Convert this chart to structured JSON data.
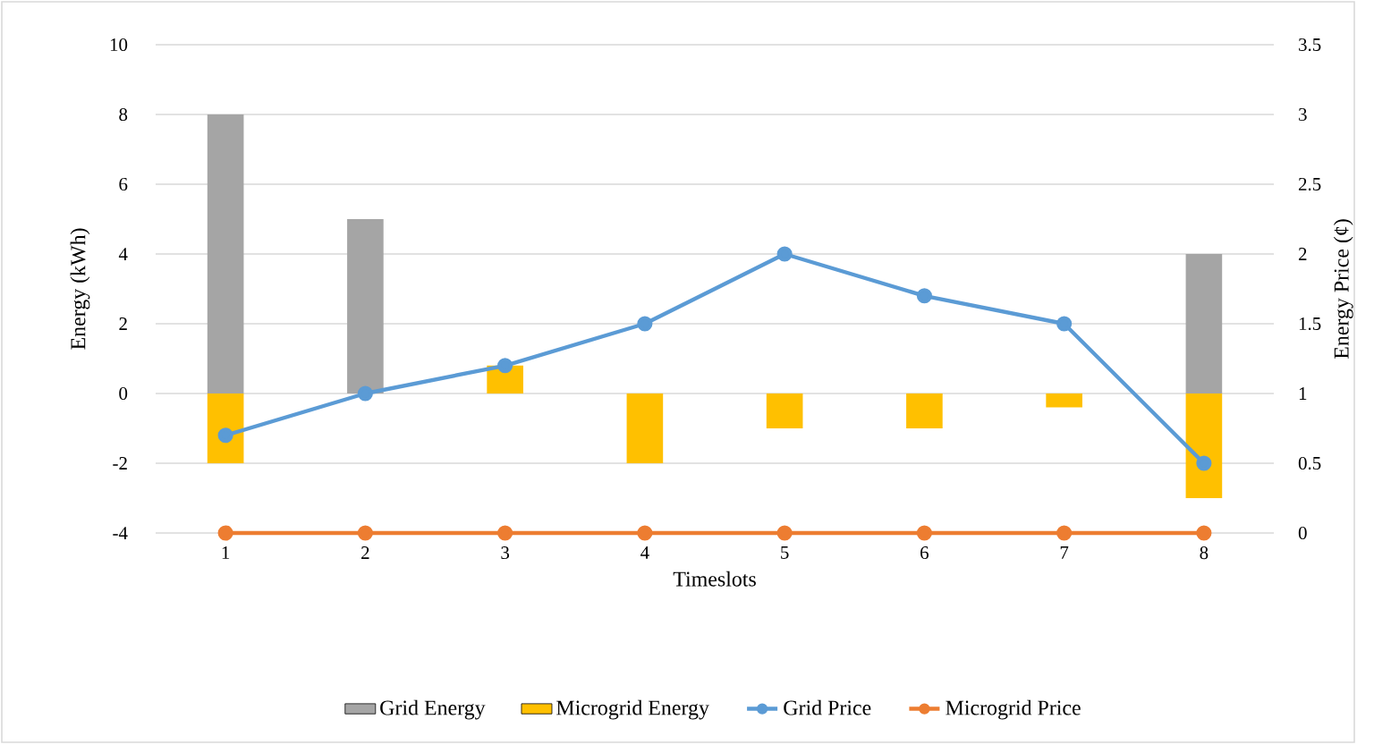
{
  "chart_data": {
    "type": "bar",
    "xlabel": "Timeslots",
    "ylabel": "Energy (kWh)",
    "y2label": "Energy Price (¢)",
    "categories": [
      "1",
      "2",
      "3",
      "4",
      "5",
      "6",
      "7",
      "8"
    ],
    "series": [
      {
        "name": "Grid Energy",
        "color": "#a5a5a5",
        "values": [
          8,
          5,
          0,
          0,
          0,
          0,
          0,
          4
        ]
      },
      {
        "name": "Microgrid Energy",
        "color": "#ffc000",
        "values": [
          -2,
          0,
          0.8,
          -2,
          -1,
          -1,
          -0.4,
          -3
        ]
      },
      {
        "name": "Grid Price",
        "type": "line",
        "axis": "y2",
        "color": "#5b9bd5",
        "values": [
          0.7,
          1,
          1.2,
          1.5,
          2,
          1.7,
          1.5,
          0.5
        ]
      },
      {
        "name": "Microgrid Price",
        "type": "line",
        "axis": "y2",
        "color": "#ed7d31",
        "values": [
          0,
          0,
          0,
          0,
          0,
          0,
          0,
          0
        ]
      }
    ],
    "ylim": [
      -4,
      10
    ],
    "yticks": [
      -4,
      -2,
      0,
      2,
      4,
      6,
      8,
      10
    ],
    "y2lim": [
      0,
      3.5
    ],
    "y2ticks": [
      0,
      0.5,
      1,
      1.5,
      2,
      2.5,
      3,
      3.5
    ],
    "grid": "y",
    "legend": "bottom",
    "marker": "circle"
  }
}
